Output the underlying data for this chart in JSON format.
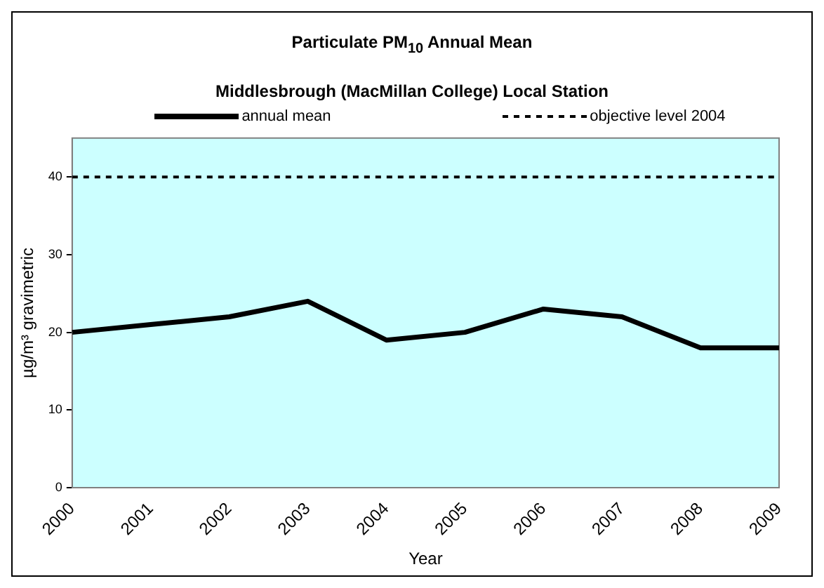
{
  "chart_data": {
    "type": "line",
    "title": "Particulate PM$_{10}$ Annual Mean",
    "subtitle": "Middlesbrough (MacMillan College) Local Station",
    "xlabel": "Year",
    "ylabel": "µg/m³ gravimetric",
    "categories": [
      "2000",
      "2001",
      "2002",
      "2003",
      "2004",
      "2005",
      "2006",
      "2007",
      "2008",
      "2009"
    ],
    "series": [
      {
        "name": "annual mean",
        "color": "#000000",
        "line_style": "solid",
        "values": [
          20,
          21,
          22,
          24,
          19,
          20,
          23,
          22,
          18,
          18
        ]
      },
      {
        "name": "objective level 2004",
        "color": "#000000",
        "line_style": "dashed",
        "values": [
          40,
          40,
          40,
          40,
          40,
          40,
          40,
          40,
          40,
          40
        ]
      }
    ],
    "ylim": [
      0,
      45
    ],
    "yticks": [
      0,
      10,
      20,
      30,
      40
    ],
    "grid": false,
    "legend": "top",
    "marker": "none"
  }
}
